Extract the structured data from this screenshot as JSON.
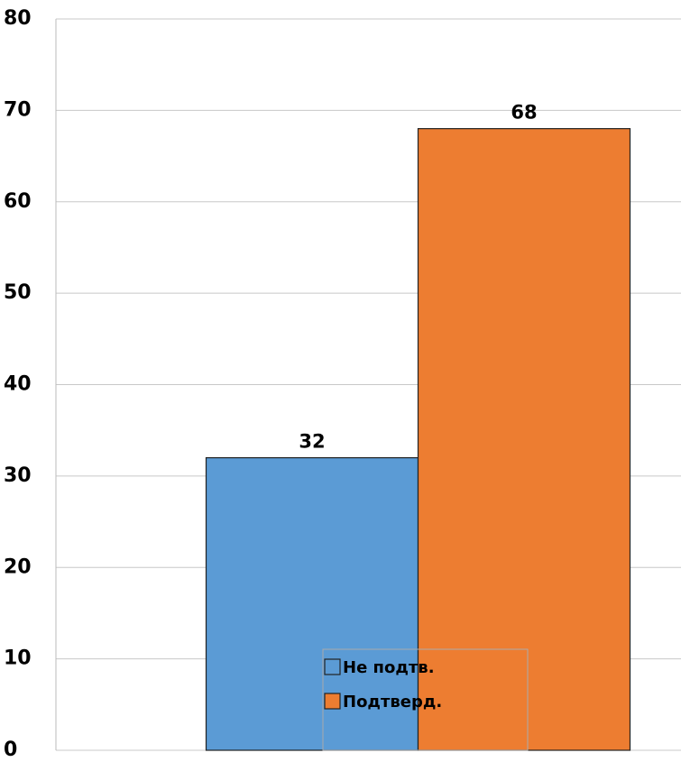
{
  "chart_data": {
    "type": "bar",
    "categories": [
      null
    ],
    "series": [
      {
        "name": "Не подтв.",
        "color": "#5b9bd5",
        "values": [
          32
        ]
      },
      {
        "name": "Подтверд.",
        "color": "#ed7d31",
        "values": [
          68
        ]
      }
    ],
    "ylim": [
      0,
      80
    ],
    "yticks": [
      0,
      10,
      20,
      30,
      40,
      50,
      60,
      70,
      80
    ],
    "grid": true,
    "data_labels": true,
    "legend": "bottom"
  }
}
